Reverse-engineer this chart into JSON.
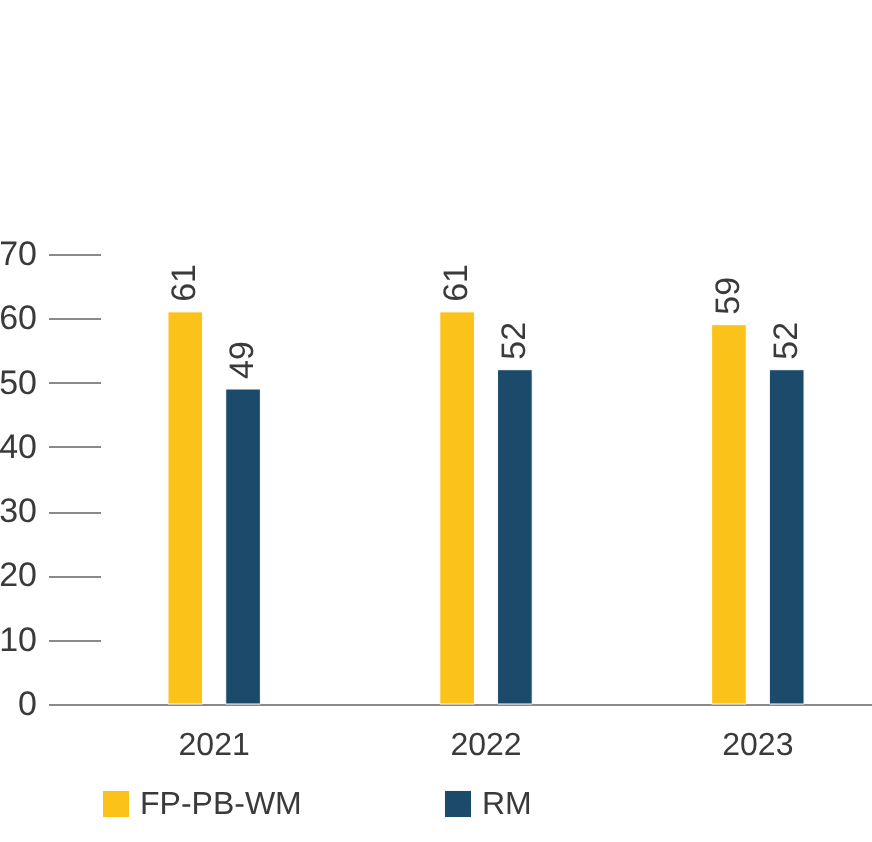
{
  "chart_data": {
    "type": "bar",
    "categories": [
      "2021",
      "2022",
      "2023"
    ],
    "series": [
      {
        "name": "FP-PB-WM",
        "color": "#fbc21a",
        "values": [
          61,
          61,
          59
        ]
      },
      {
        "name": "RM",
        "color": "#1c4a6b",
        "values": [
          49,
          52,
          52
        ]
      }
    ],
    "ylim": [
      0,
      70
    ],
    "yticks": [
      0,
      10,
      20,
      30,
      40,
      50,
      60,
      70
    ],
    "grid": false,
    "legend": "bottom",
    "data_labels": true
  }
}
